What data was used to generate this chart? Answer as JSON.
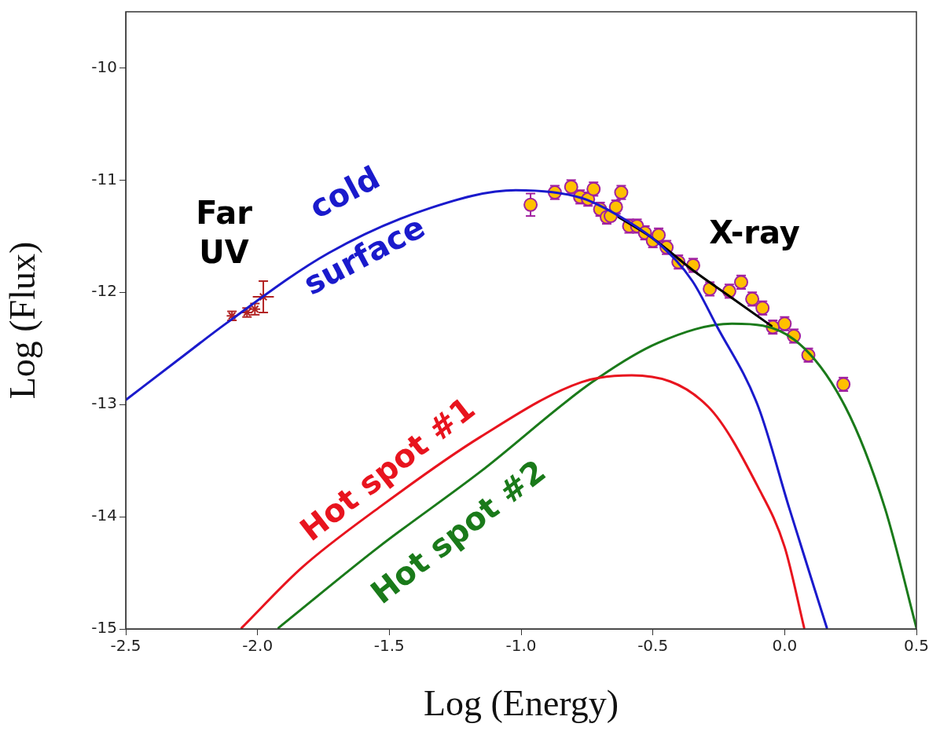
{
  "chart_data": {
    "type": "line",
    "xlabel": "Log (Energy)",
    "ylabel": "Log (Flux)",
    "xlim": [
      -2.5,
      0.5
    ],
    "ylim": [
      -15,
      -9.5
    ],
    "xticks": [
      {
        "value": -2.5,
        "label": "-2.5"
      },
      {
        "value": -2.0,
        "label": "-2.0"
      },
      {
        "value": -1.5,
        "label": "-1.5"
      },
      {
        "value": -1.0,
        "label": "-1.0"
      },
      {
        "value": -0.5,
        "label": "-0.5"
      },
      {
        "value": 0,
        "label": "0.0"
      },
      {
        "value": 0.5,
        "label": "0.5"
      }
    ],
    "yticks": [
      -15,
      -14,
      -13,
      -12,
      -11,
      -10
    ],
    "grid": false,
    "legend": false,
    "annotations": [
      "Far UV",
      "X-ray"
    ],
    "series": [
      {
        "name": "cold surface",
        "color": "#1a1acc",
        "marker": "none",
        "x": [
          -2.5,
          -2.3,
          -2.115,
          -1.73,
          -1.346,
          -1.02,
          -0.77,
          -0.6,
          -0.48,
          -0.35,
          -0.26,
          -0.1,
          0.017,
          0.16
        ],
        "values": [
          -12.96,
          -12.6,
          -12.27,
          -11.65,
          -11.25,
          -11.09,
          -11.16,
          -11.36,
          -11.56,
          -11.9,
          -12.29,
          -13.02,
          -13.92,
          -14.99
        ]
      },
      {
        "name": "Hot spot #1",
        "color": "#e8141e",
        "marker": "none",
        "x": [
          -2.06,
          -1.83,
          -1.54,
          -1.155,
          -0.77,
          -0.58,
          -0.29,
          -0.1,
          0.0,
          0.074
        ],
        "values": [
          -14.99,
          -14.45,
          -13.92,
          -13.29,
          -12.8,
          -12.74,
          -13.02,
          -13.74,
          -14.27,
          -14.99
        ]
      },
      {
        "name": "Hot spot #2",
        "color": "#1a7a1a",
        "marker": "none",
        "x": [
          -1.92,
          -1.54,
          -1.155,
          -0.73,
          -0.48,
          -0.2,
          0.035,
          0.23,
          0.38,
          0.5
        ],
        "values": [
          -14.99,
          -14.27,
          -13.6,
          -12.8,
          -12.45,
          -12.28,
          -12.42,
          -13.02,
          -13.92,
          -14.99
        ]
      },
      {
        "color": "#000000",
        "marker": "none",
        "x": [
          -0.63,
          -0.5,
          -0.35,
          -0.2,
          -0.05
        ],
        "values": [
          -11.33,
          -11.52,
          -11.8,
          -12.05,
          -12.3
        ]
      },
      {
        "type": "scatter",
        "color": "#b22222",
        "marker": "cross",
        "x": [
          -2.097,
          -2.04,
          -2.01,
          -1.978
        ],
        "values": [
          -12.21,
          -12.18,
          -12.15,
          -12.04
        ],
        "errors": [
          0.04,
          0.04,
          0.05,
          0.14
        ],
        "xerrors": [
          0.02,
          0.02,
          0.02,
          0.04
        ]
      },
      {
        "type": "scatter",
        "color": "#ffc000",
        "marker": "circle",
        "x": [
          -0.964,
          -0.872,
          -0.81,
          -0.776,
          -0.746,
          -0.725,
          -0.7,
          -0.675,
          -0.66,
          -0.64,
          -0.62,
          -0.59,
          -0.56,
          -0.53,
          -0.5,
          -0.478,
          -0.448,
          -0.403,
          -0.347,
          -0.284,
          -0.21,
          -0.165,
          -0.123,
          -0.084,
          -0.045,
          0.0,
          0.035,
          0.09,
          0.223
        ],
        "values": [
          -11.22,
          -11.11,
          -11.06,
          -11.15,
          -11.17,
          -11.08,
          -11.26,
          -11.33,
          -11.32,
          -11.24,
          -11.11,
          -11.41,
          -11.41,
          -11.47,
          -11.54,
          -11.49,
          -11.6,
          -11.73,
          -11.76,
          -11.97,
          -11.99,
          -11.91,
          -12.06,
          -12.14,
          -12.31,
          -12.28,
          -12.39,
          -12.56,
          -12.82
        ],
        "errors": [
          0.1,
          0.06,
          0.06,
          0.06,
          0.06,
          0.06,
          0.06,
          0.06,
          null,
          0.06,
          0.06,
          0.06,
          0.06,
          0.06,
          0.06,
          0.06,
          0.06,
          0.06,
          0.06,
          0.06,
          0.06,
          0.06,
          0.06,
          0.06,
          0.06,
          0.06,
          0.06,
          0.06,
          0.06
        ]
      }
    ]
  }
}
